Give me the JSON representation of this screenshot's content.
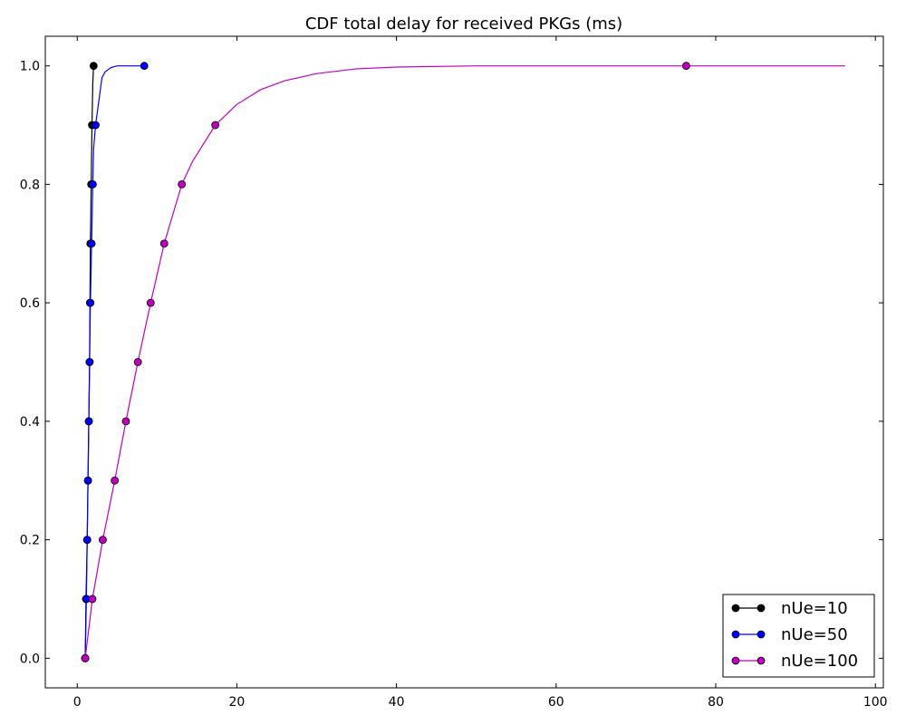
{
  "chart_data": {
    "type": "line",
    "title": "CDF total delay for received PKGs (ms)",
    "xlabel": "",
    "ylabel": "",
    "xlim": [
      -4,
      101
    ],
    "ylim": [
      -0.05,
      1.05
    ],
    "xticks": [
      0,
      20,
      40,
      60,
      80,
      100
    ],
    "yticks": [
      0.0,
      0.2,
      0.4,
      0.6,
      0.8,
      1.0
    ],
    "xtick_labels": [
      "0",
      "20",
      "40",
      "60",
      "80",
      "100"
    ],
    "ytick_labels": [
      "0.0",
      "0.2",
      "0.4",
      "0.6",
      "0.8",
      "1.0"
    ],
    "grid": false,
    "legend_position": "bottom-right",
    "series": [
      {
        "name": "nUe=10",
        "color": "#000000",
        "line": [
          [
            1.0,
            0.0
          ],
          [
            1.1,
            0.1
          ],
          [
            1.25,
            0.2
          ],
          [
            1.35,
            0.3
          ],
          [
            1.45,
            0.4
          ],
          [
            1.55,
            0.5
          ],
          [
            1.6,
            0.6
          ],
          [
            1.65,
            0.7
          ],
          [
            1.75,
            0.8
          ],
          [
            1.85,
            0.9
          ],
          [
            1.95,
            0.97
          ],
          [
            2.05,
            1.0
          ]
        ],
        "markers": [
          [
            1.0,
            0.0
          ],
          [
            1.1,
            0.1
          ],
          [
            1.25,
            0.2
          ],
          [
            1.35,
            0.3
          ],
          [
            1.45,
            0.4
          ],
          [
            1.55,
            0.5
          ],
          [
            1.6,
            0.6
          ],
          [
            1.65,
            0.7
          ],
          [
            1.75,
            0.8
          ],
          [
            1.85,
            0.9
          ],
          [
            2.05,
            1.0
          ]
        ]
      },
      {
        "name": "nUe=50",
        "color": "#0000ff",
        "line": [
          [
            1.0,
            0.0
          ],
          [
            1.15,
            0.1
          ],
          [
            1.25,
            0.2
          ],
          [
            1.35,
            0.3
          ],
          [
            1.45,
            0.4
          ],
          [
            1.55,
            0.5
          ],
          [
            1.65,
            0.6
          ],
          [
            1.8,
            0.7
          ],
          [
            1.95,
            0.8
          ],
          [
            2.05,
            0.86
          ],
          [
            2.3,
            0.9
          ],
          [
            2.6,
            0.93
          ],
          [
            2.9,
            0.96
          ],
          [
            3.1,
            0.98
          ],
          [
            3.5,
            0.99
          ],
          [
            4.2,
            0.997
          ],
          [
            5.0,
            1.0
          ],
          [
            6.5,
            1.0
          ],
          [
            8.4,
            1.0
          ]
        ],
        "markers": [
          [
            1.0,
            0.0
          ],
          [
            1.15,
            0.1
          ],
          [
            1.25,
            0.2
          ],
          [
            1.35,
            0.3
          ],
          [
            1.45,
            0.4
          ],
          [
            1.55,
            0.5
          ],
          [
            1.65,
            0.6
          ],
          [
            1.8,
            0.7
          ],
          [
            1.95,
            0.8
          ],
          [
            2.3,
            0.9
          ],
          [
            8.4,
            1.0
          ]
        ]
      },
      {
        "name": "nUe=100",
        "color": "#bf00bf",
        "line": [
          [
            1.0,
            0.0
          ],
          [
            1.9,
            0.1
          ],
          [
            3.2,
            0.2
          ],
          [
            4.7,
            0.3
          ],
          [
            6.1,
            0.4
          ],
          [
            7.6,
            0.5
          ],
          [
            9.2,
            0.6
          ],
          [
            10.9,
            0.7
          ],
          [
            13.1,
            0.8
          ],
          [
            14.5,
            0.84
          ],
          [
            17.3,
            0.9
          ],
          [
            20,
            0.935
          ],
          [
            23,
            0.96
          ],
          [
            26,
            0.975
          ],
          [
            30,
            0.987
          ],
          [
            35,
            0.995
          ],
          [
            40,
            0.998
          ],
          [
            50,
            1.0
          ],
          [
            60,
            1.0
          ],
          [
            76.3,
            1.0
          ],
          [
            96.2,
            1.0
          ]
        ],
        "markers": [
          [
            1.0,
            0.0
          ],
          [
            1.9,
            0.1
          ],
          [
            3.2,
            0.2
          ],
          [
            4.7,
            0.3
          ],
          [
            6.1,
            0.4
          ],
          [
            7.6,
            0.5
          ],
          [
            9.2,
            0.6
          ],
          [
            10.9,
            0.7
          ],
          [
            13.1,
            0.8
          ],
          [
            17.3,
            0.9
          ],
          [
            76.3,
            1.0
          ]
        ]
      }
    ]
  }
}
